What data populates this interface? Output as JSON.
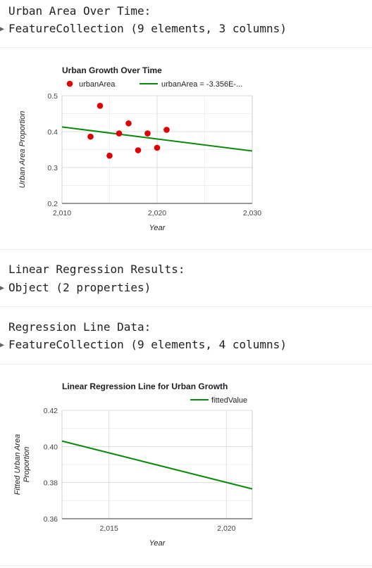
{
  "console": {
    "line1": "Urban Area Over Time:",
    "line1_obj": "FeatureCollection (9 elements, 3 columns)",
    "line2": "Linear Regression Results:",
    "line2_obj": "Object (2 properties)",
    "line3": "Regression Line Data:",
    "line3_obj": "FeatureCollection (9 elements, 4 columns)"
  },
  "colors": {
    "points": "#e00000",
    "trend": "#0a8a0a",
    "fitted": "#0a8a0a",
    "grid": "#dddddd",
    "axis": "#333333"
  },
  "chart_data": [
    {
      "type": "scatter",
      "title": "Urban Growth Over Time",
      "xlabel": "Year",
      "ylabel": "Urban Area Proportion",
      "xlim": [
        2010,
        2030
      ],
      "ylim": [
        0.2,
        0.5
      ],
      "xticks": [
        2010,
        2020,
        2030
      ],
      "xtick_labels": [
        "2,010",
        "2,020",
        "2,030"
      ],
      "yticks": [
        0.2,
        0.3,
        0.4,
        0.5
      ],
      "ytick_labels": [
        "0.2",
        "0.3",
        "0.4",
        "0.5"
      ],
      "legend_position": "top",
      "series": [
        {
          "name": "urbanArea",
          "x": [
            2013,
            2014,
            2015,
            2016,
            2017,
            2018,
            2019,
            2020,
            2021
          ],
          "y": [
            0.386,
            0.472,
            0.333,
            0.395,
            0.423,
            0.348,
            0.395,
            0.355,
            0.405
          ]
        }
      ],
      "trendline": {
        "name": "urbanArea = -3.356E-...",
        "x": [
          2010,
          2030
        ],
        "y": [
          0.413,
          0.346
        ]
      }
    },
    {
      "type": "line",
      "title": "Linear Regression Line for Urban Growth",
      "xlabel": "Year",
      "ylabel": "Fitted Urban Area Proportion",
      "xlim": [
        2013,
        2021.1
      ],
      "ylim": [
        0.36,
        0.42
      ],
      "xticks": [
        2015,
        2020
      ],
      "xtick_labels": [
        "2,015",
        "2,020"
      ],
      "yticks": [
        0.36,
        0.38,
        0.4,
        0.42
      ],
      "ytick_labels": [
        "0.36",
        "0.38",
        "0.40",
        "0.42"
      ],
      "legend_position": "top-right",
      "series": [
        {
          "name": "fittedValue",
          "x": [
            2013,
            2021.1
          ],
          "y": [
            0.403,
            0.3765
          ]
        }
      ]
    }
  ]
}
